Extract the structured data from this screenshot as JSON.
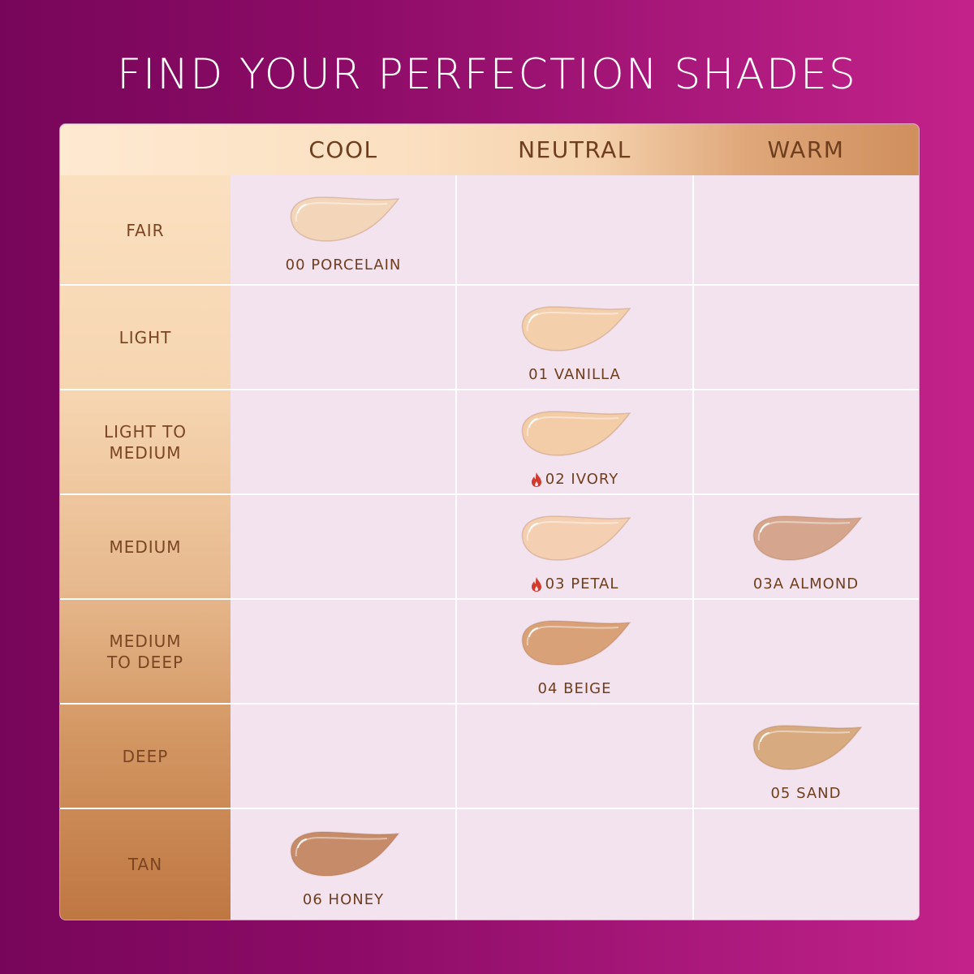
{
  "title": "FIND YOUR PERFECTION SHADES",
  "columns": [
    "COOL",
    "NEUTRAL",
    "WARM"
  ],
  "hot_icon": "fire-icon",
  "colors": {
    "hot": "#d23a2e",
    "text": "#6e3e1e"
  },
  "rows": [
    {
      "label": "FAIR",
      "cells": [
        {
          "name": "00 PORCELAIN",
          "color": "#f3d5b9",
          "hot": false
        },
        null,
        null
      ]
    },
    {
      "label": "LIGHT",
      "cells": [
        null,
        {
          "name": "01 VANILLA",
          "color": "#f4cfac",
          "hot": false
        },
        null
      ]
    },
    {
      "label": "LIGHT TO\nMEDIUM",
      "cells": [
        null,
        {
          "name": "02 IVORY",
          "color": "#f3cca8",
          "hot": true
        },
        null
      ]
    },
    {
      "label": "MEDIUM",
      "cells": [
        null,
        {
          "name": "03 PETAL",
          "color": "#f4cfb1",
          "hot": true
        },
        {
          "name": "03A ALMOND",
          "color": "#d5a68d",
          "hot": false
        }
      ]
    },
    {
      "label": "MEDIUM\nTO DEEP",
      "cells": [
        null,
        {
          "name": "04 BEIGE",
          "color": "#d8a177",
          "hot": false
        },
        null
      ]
    },
    {
      "label": "DEEP",
      "cells": [
        null,
        null,
        {
          "name": "05 SAND",
          "color": "#d7aa7f",
          "hot": false
        }
      ]
    },
    {
      "label": "TAN",
      "cells": [
        {
          "name": "06 HONEY",
          "color": "#c68b68",
          "hot": false
        },
        null,
        null
      ]
    }
  ]
}
